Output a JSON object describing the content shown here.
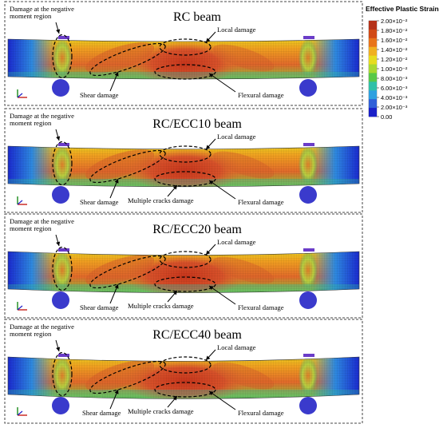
{
  "legend": {
    "title": "Effective Plastic Strain",
    "ticks": [
      "2.00×10⁻²",
      "1.80×10⁻²",
      "1.60×10⁻²",
      "1.40×10⁻²",
      "1.20×10⁻²",
      "1.00×10⁻²",
      "8.00×10⁻³",
      "6.00×10⁻³",
      "4.00×10⁻³",
      "2.00×10⁻³",
      "0.00"
    ],
    "colors": [
      "#b5331a",
      "#d14a16",
      "#e8741a",
      "#f0b020",
      "#e6dc1e",
      "#a8d830",
      "#58c848",
      "#30c0a8",
      "#2ea0e0",
      "#3060d8",
      "#1a20c8"
    ]
  },
  "panels": [
    {
      "title": "RC beam",
      "labels": {
        "negative": "Damage at the negative\nmoment region",
        "local": "Local damage",
        "shear": "Shear damage",
        "flexural": "Flexural damage"
      }
    },
    {
      "title": "RC/ECC10 beam",
      "labels": {
        "negative": "Damage at the negative\nmoment region",
        "local": "Local damage",
        "shear": "Shear damage",
        "flexural": "Flexural damage",
        "multiple": "Multiple cracks damage"
      }
    },
    {
      "title": "RC/ECC20 beam",
      "labels": {
        "negative": "Damage at the negative\nmoment region",
        "local": "Local damage",
        "shear": "Shear damage",
        "flexural": "Flexural damage",
        "multiple": "Multiple cracks damage"
      }
    },
    {
      "title": "RC/ECC40 beam",
      "labels": {
        "negative": "Damage at the negative\nmoment region",
        "local": "Local damage",
        "shear": "Shear damage",
        "flexural": "Flexural damage",
        "multiple": "Multiple cracks damage"
      }
    }
  ]
}
